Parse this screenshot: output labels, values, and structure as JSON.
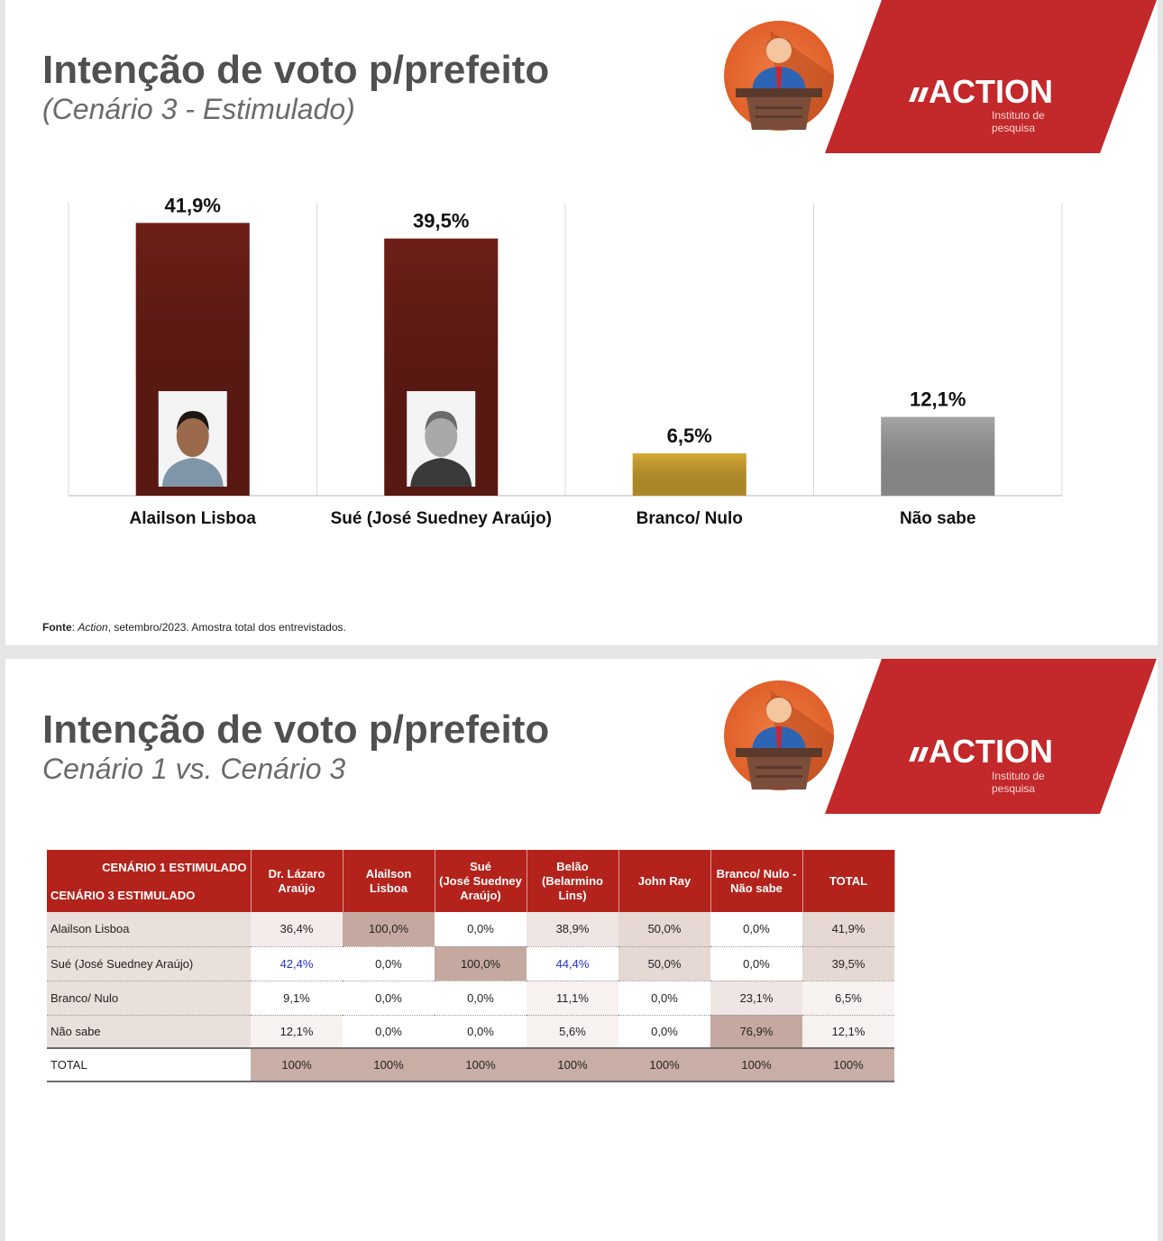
{
  "slide1": {
    "title": "Intenção de voto p/prefeito",
    "subtitle": "(Cenário 3 - Estimulado)",
    "logo": "ACTION",
    "tagline": [
      "Instituto de",
      "pesquisa"
    ],
    "source": [
      "Fonte",
      ": ",
      "Action",
      ", setembro/2023. Amostra total dos entrevistados."
    ]
  },
  "chart_data": {
    "type": "bar",
    "categories": [
      "Alailson Lisboa",
      "Sué (José Suedney Araújo)",
      "Branco/ Nulo",
      "Não sabe"
    ],
    "values": [
      41.9,
      39.5,
      6.5,
      12.1
    ],
    "value_labels": [
      "41,9%",
      "39,5%",
      "6,5%",
      "12,1%"
    ],
    "colors": [
      "#6e1f17",
      "#6e1f17",
      "#d8aa34",
      "#a6a6a6"
    ],
    "ylim": [
      0,
      45
    ]
  },
  "slide2": {
    "title": "Intenção de voto p/prefeito",
    "subtitle": "Cenário 1 vs. Cenário 3",
    "logo": "ACTION",
    "tagline": [
      "Instituto de",
      "pesquisa"
    ]
  },
  "table": {
    "corner": [
      "CENÁRIO 1 ESTIMULADO",
      "CENÁRIO 3 ESTIMULADO"
    ],
    "columns": [
      [
        "Dr. Lázaro",
        "Araújo"
      ],
      [
        "Alailson",
        "Lisboa"
      ],
      [
        "Sué",
        "(José Suedney",
        "Araújo)"
      ],
      [
        "Belão",
        "(Belarmino",
        "Lins)"
      ],
      [
        "John Ray"
      ],
      [
        "Branco/ Nulo -",
        "Não sabe"
      ],
      [
        "TOTAL"
      ]
    ],
    "rows": [
      [
        "Alailson Lisboa",
        "36,4%",
        "100,0%",
        "0,0%",
        "38,9%",
        "50,0%",
        "0,0%",
        "41,9%"
      ],
      [
        "Sué (José Suedney Araújo)",
        "42,4%",
        "0,0%",
        "100,0%",
        "44,4%",
        "50,0%",
        "0,0%",
        "39,5%"
      ],
      [
        "Branco/ Nulo",
        "9,1%",
        "0,0%",
        "0,0%",
        "11,1%",
        "0,0%",
        "23,1%",
        "6,5%"
      ],
      [
        "Não sabe",
        "12,1%",
        "0,0%",
        "0,0%",
        "5,6%",
        "0,0%",
        "76,9%",
        "12,1%"
      ],
      [
        "TOTAL",
        "100%",
        "100%",
        "100%",
        "100%",
        "100%",
        "100%",
        "100%"
      ]
    ]
  }
}
